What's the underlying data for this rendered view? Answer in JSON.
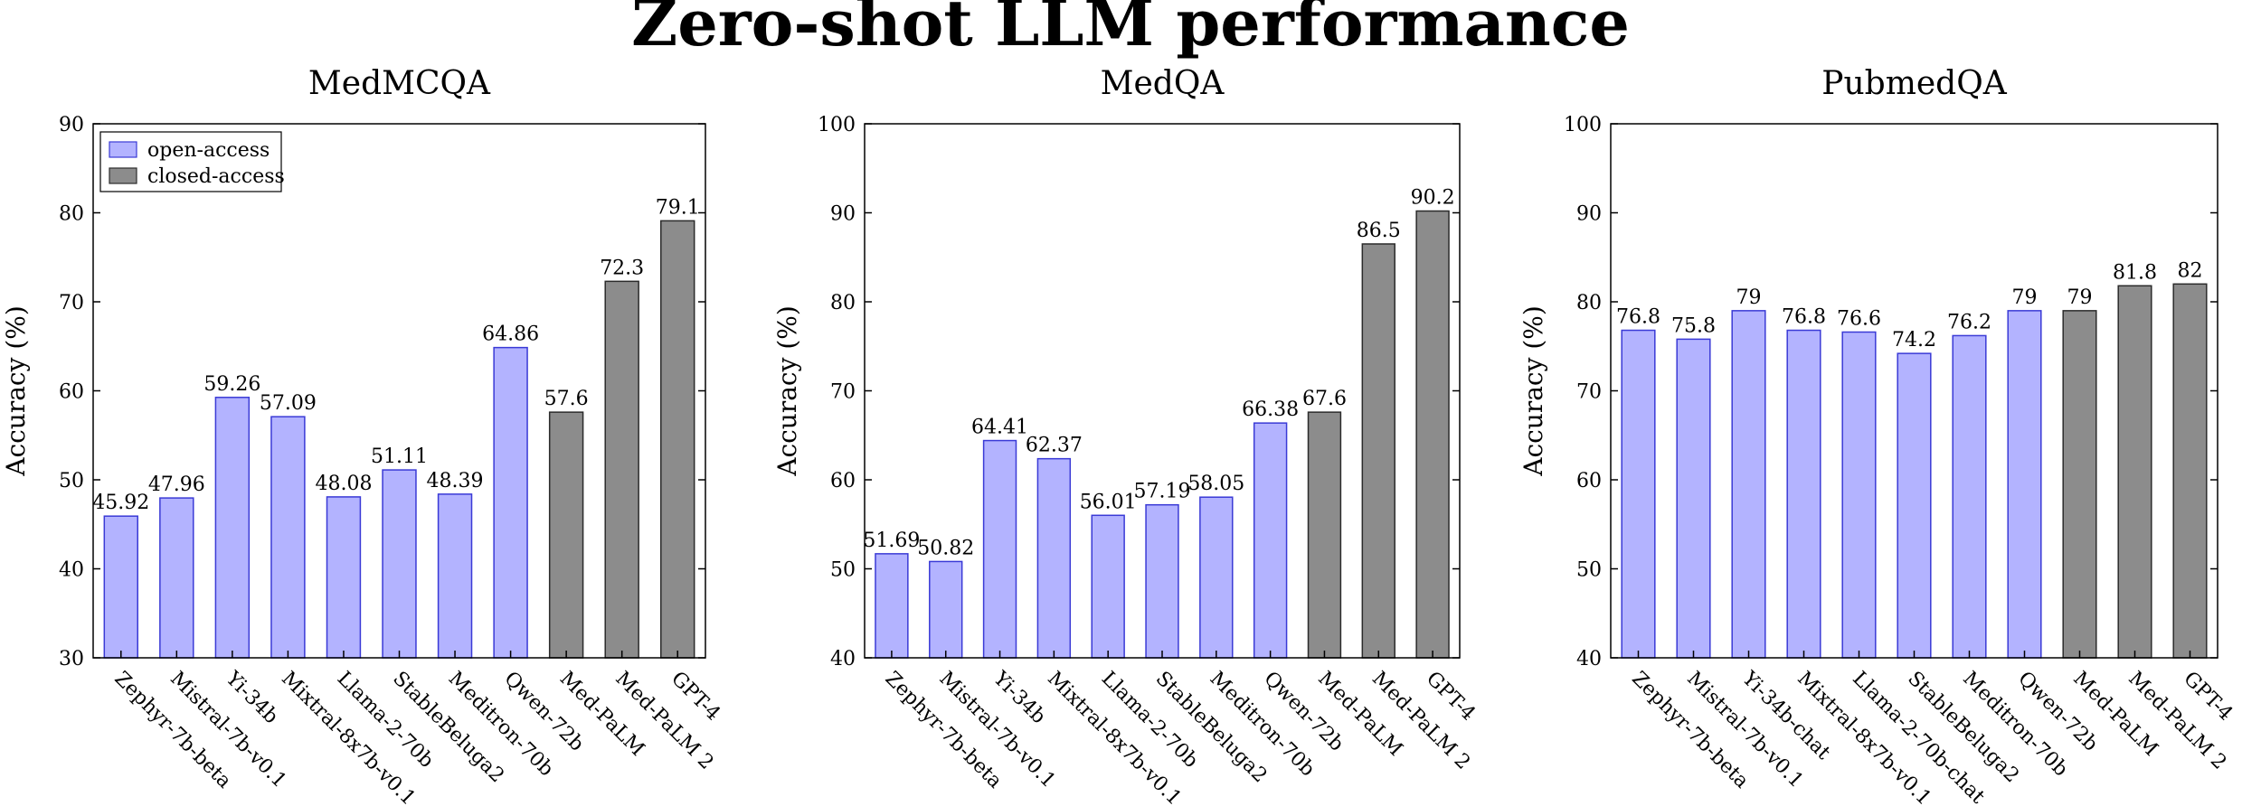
{
  "title": "Zero-shot LLM performance",
  "colors": {
    "open": "#b3b3ff",
    "open_edge": "#3a3ad6",
    "closed": "#8c8c8c",
    "closed_edge": "#2b2b2b"
  },
  "legend": {
    "open_label": "open-access",
    "closed_label": "closed-access"
  },
  "chart_data": [
    {
      "type": "bar",
      "title": "MedMCQA",
      "ylabel": "Accuracy (%)",
      "ylim": [
        30,
        90
      ],
      "yticks": [
        30,
        40,
        50,
        60,
        70,
        80,
        90
      ],
      "legend": "top-left",
      "categories": [
        "Zephyr-7b-beta",
        "Mistral-7b-v0.1",
        "Yi-34b",
        "Mixtral-8x7b-v0.1",
        "Llama-2-70b",
        "StableBeluga2",
        "Meditron-70b",
        "Qwen-72b",
        "Med-PaLM",
        "Med-PaLM 2",
        "GPT-4"
      ],
      "values": [
        45.92,
        47.96,
        59.26,
        57.09,
        48.08,
        51.11,
        48.39,
        64.86,
        57.6,
        72.3,
        79.1
      ],
      "labels": [
        "45.92",
        "47.96",
        "59.26",
        "57.09",
        "48.08",
        "51.11",
        "48.39",
        "64.86",
        "57.6",
        "72.3",
        "79.1"
      ],
      "access": [
        "open",
        "open",
        "open",
        "open",
        "open",
        "open",
        "open",
        "open",
        "closed",
        "closed",
        "closed"
      ]
    },
    {
      "type": "bar",
      "title": "MedQA",
      "ylabel": "Accuracy (%)",
      "ylim": [
        40,
        100
      ],
      "yticks": [
        40,
        50,
        60,
        70,
        80,
        90,
        100
      ],
      "categories": [
        "Zephyr-7b-beta",
        "Mistral-7b-v0.1",
        "Yi-34b",
        "Mixtral-8x7b-v0.1",
        "Llama-2-70b",
        "StableBeluga2",
        "Meditron-70b",
        "Qwen-72b",
        "Med-PaLM",
        "Med-PaLM 2",
        "GPT-4"
      ],
      "values": [
        51.69,
        50.82,
        64.41,
        62.37,
        56.01,
        57.19,
        58.05,
        66.38,
        67.6,
        86.5,
        90.2
      ],
      "labels": [
        "51.69",
        "50.82",
        "64.41",
        "62.37",
        "56.01",
        "57.19",
        "58.05",
        "66.38",
        "67.6",
        "86.5",
        "90.2"
      ],
      "access": [
        "open",
        "open",
        "open",
        "open",
        "open",
        "open",
        "open",
        "open",
        "closed",
        "closed",
        "closed"
      ]
    },
    {
      "type": "bar",
      "title": "PubmedQA",
      "ylabel": "Accuracy (%)",
      "ylim": [
        40,
        100
      ],
      "yticks": [
        40,
        50,
        60,
        70,
        80,
        90,
        100
      ],
      "categories": [
        "Zephyr-7b-beta",
        "Mistral-7b-v0.1",
        "Yi-34b-chat",
        "Mixtral-8x7b-v0.1",
        "Llama-2-70b-chat",
        "StableBeluga2",
        "Meditron-70b",
        "Qwen-72b",
        "Med-PaLM",
        "Med-PaLM 2",
        "GPT-4"
      ],
      "values": [
        76.8,
        75.8,
        79,
        76.8,
        76.6,
        74.2,
        76.2,
        79,
        79,
        81.8,
        82
      ],
      "labels": [
        "76.8",
        "75.8",
        "79",
        "76.8",
        "76.6",
        "74.2",
        "76.2",
        "79",
        "79",
        "81.8",
        "82"
      ],
      "access": [
        "open",
        "open",
        "open",
        "open",
        "open",
        "open",
        "open",
        "open",
        "closed",
        "closed",
        "closed"
      ]
    }
  ]
}
